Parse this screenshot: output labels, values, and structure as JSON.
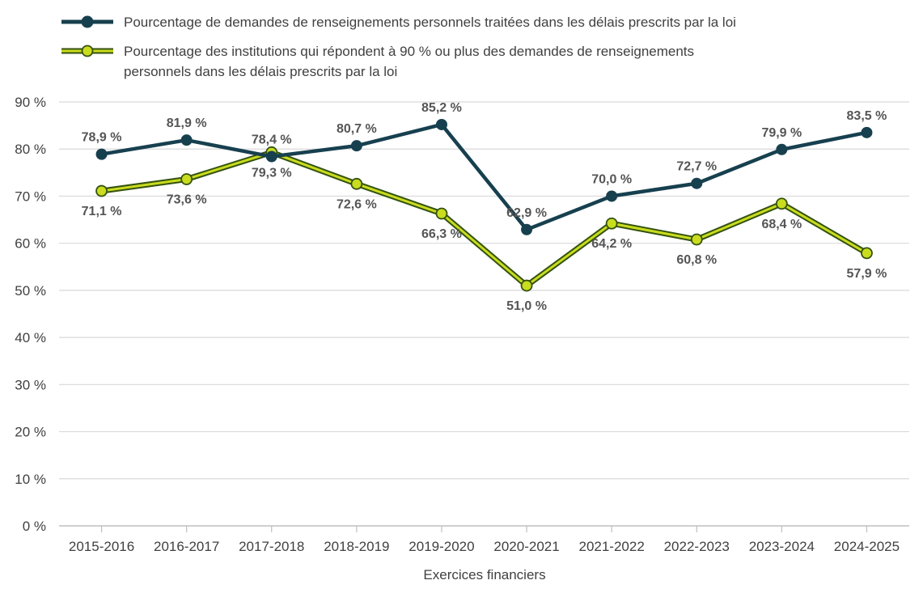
{
  "chart_data": {
    "type": "line",
    "title": "",
    "xlabel": "Exercices financiers",
    "ylabel": "",
    "ylim": [
      0,
      90
    ],
    "y_ticks": [
      0,
      10,
      20,
      30,
      40,
      50,
      60,
      70,
      80,
      90
    ],
    "y_tick_labels": [
      "0 %",
      "10 %",
      "20 %",
      "30 %",
      "40 %",
      "50 %",
      "60 %",
      "70 %",
      "80 %",
      "90 %"
    ],
    "grid": true,
    "legend_position": "top-left",
    "categories": [
      "2015-2016",
      "2016-2017",
      "2017-2018",
      "2018-2019",
      "2019-2020",
      "2020-2021",
      "2021-2022",
      "2022-2023",
      "2023-2024",
      "2024-2025"
    ],
    "series": [
      {
        "name": "Pourcentage de demandes de renseignements personnels traitées dans les délais prescrits par la loi",
        "legend_lines": [
          "Pourcentage de demandes de renseignements personnels traitées dans les délais prescrits par la loi"
        ],
        "values": [
          78.9,
          81.9,
          78.4,
          80.7,
          85.2,
          62.9,
          70.0,
          72.7,
          79.9,
          83.5
        ],
        "labels": [
          "78,9 %",
          "81,9 %",
          "78,4 %",
          "80,7 %",
          "85,2 %",
          "62,9 %",
          "70,0 %",
          "72,7 %",
          "79,9 %",
          "83,5 %"
        ],
        "label_side": [
          "above",
          "above",
          "above",
          "above",
          "above",
          "above",
          "above",
          "above",
          "above",
          "above"
        ],
        "color": "#17404f",
        "marker_color": "#17404f"
      },
      {
        "name": "Pourcentage des institutions qui répondent à 90 % ou plus des demandes de renseignements personnels dans les délais prescrits par la loi",
        "legend_lines": [
          "Pourcentage des institutions qui répondent à 90 % ou plus des demandes de renseignements",
          "personnels dans les délais prescrits par la loi"
        ],
        "values": [
          71.1,
          73.6,
          79.3,
          72.6,
          66.3,
          51.0,
          64.2,
          60.8,
          68.4,
          57.9
        ],
        "labels": [
          "71,1 %",
          "73,6 %",
          "79,3 %",
          "72,6 %",
          "66,3 %",
          "51,0 %",
          "64,2 %",
          "60,8 %",
          "68,4 %",
          "57,9 %"
        ],
        "label_side": [
          "below",
          "below",
          "below",
          "below",
          "below",
          "below",
          "below",
          "below",
          "below",
          "below"
        ],
        "color": "#c9dc1e",
        "outline_color": "#34520f",
        "marker_color": "#c9dc1e"
      }
    ]
  }
}
